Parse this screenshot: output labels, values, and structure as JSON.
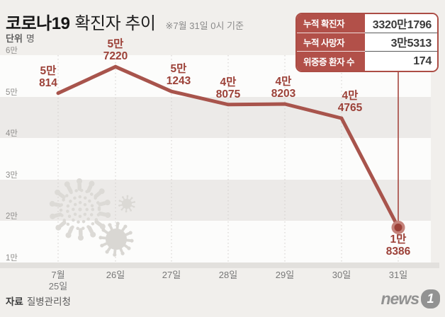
{
  "header": {
    "title_bold": "코로나19",
    "title_rest": "확진자 추이",
    "note": "※7월 31일 0시 기준",
    "unit_label": "단위",
    "unit_value": "명"
  },
  "stats_box": {
    "rows": [
      {
        "label": "누적 확진자",
        "value": "3320만1796"
      },
      {
        "label": "누적 사망자",
        "value": "3만5313"
      },
      {
        "label": "위중증 환자 수",
        "value": "174"
      }
    ]
  },
  "chart_data": {
    "type": "line",
    "title": "코로나19 확진자 추이",
    "subtitle": "※7월 31일 0시 기준",
    "unit": "명",
    "x": [
      "7월 25일",
      "26일",
      "27일",
      "28일",
      "29일",
      "30일",
      "31일"
    ],
    "x_tick_lines": [
      [
        "7월",
        "25일"
      ],
      [
        "26일"
      ],
      [
        "27일"
      ],
      [
        "28일"
      ],
      [
        "29일"
      ],
      [
        "30일"
      ],
      [
        "31일"
      ]
    ],
    "values": [
      50814,
      57220,
      51243,
      48075,
      48203,
      44765,
      18386
    ],
    "point_labels": [
      [
        "5만",
        "814"
      ],
      [
        "5만",
        "7220"
      ],
      [
        "5만",
        "1243"
      ],
      [
        "4만",
        "8075"
      ],
      [
        "4만",
        "8203"
      ],
      [
        "4만",
        "4765"
      ],
      [
        "1만",
        "8386"
      ]
    ],
    "y_ticks": [
      "6만",
      "5만",
      "4만",
      "3만",
      "2만",
      "1만"
    ],
    "ylim": [
      10000,
      60000
    ],
    "legend": "none",
    "grid": "alternating horizontal bands + vertical dotted gridlines",
    "line_color": "#a8544c",
    "label_color": "#9c4138",
    "last_point_marker": true,
    "callout_connector": "stats box to last point"
  },
  "decorations": [
    "virus-icon-large",
    "virus-icon-small",
    "virus-icon-medium"
  ],
  "footer": {
    "source_label": "자료",
    "source_value": "질병관리청",
    "logo_text": "news",
    "logo_badge": "1"
  }
}
